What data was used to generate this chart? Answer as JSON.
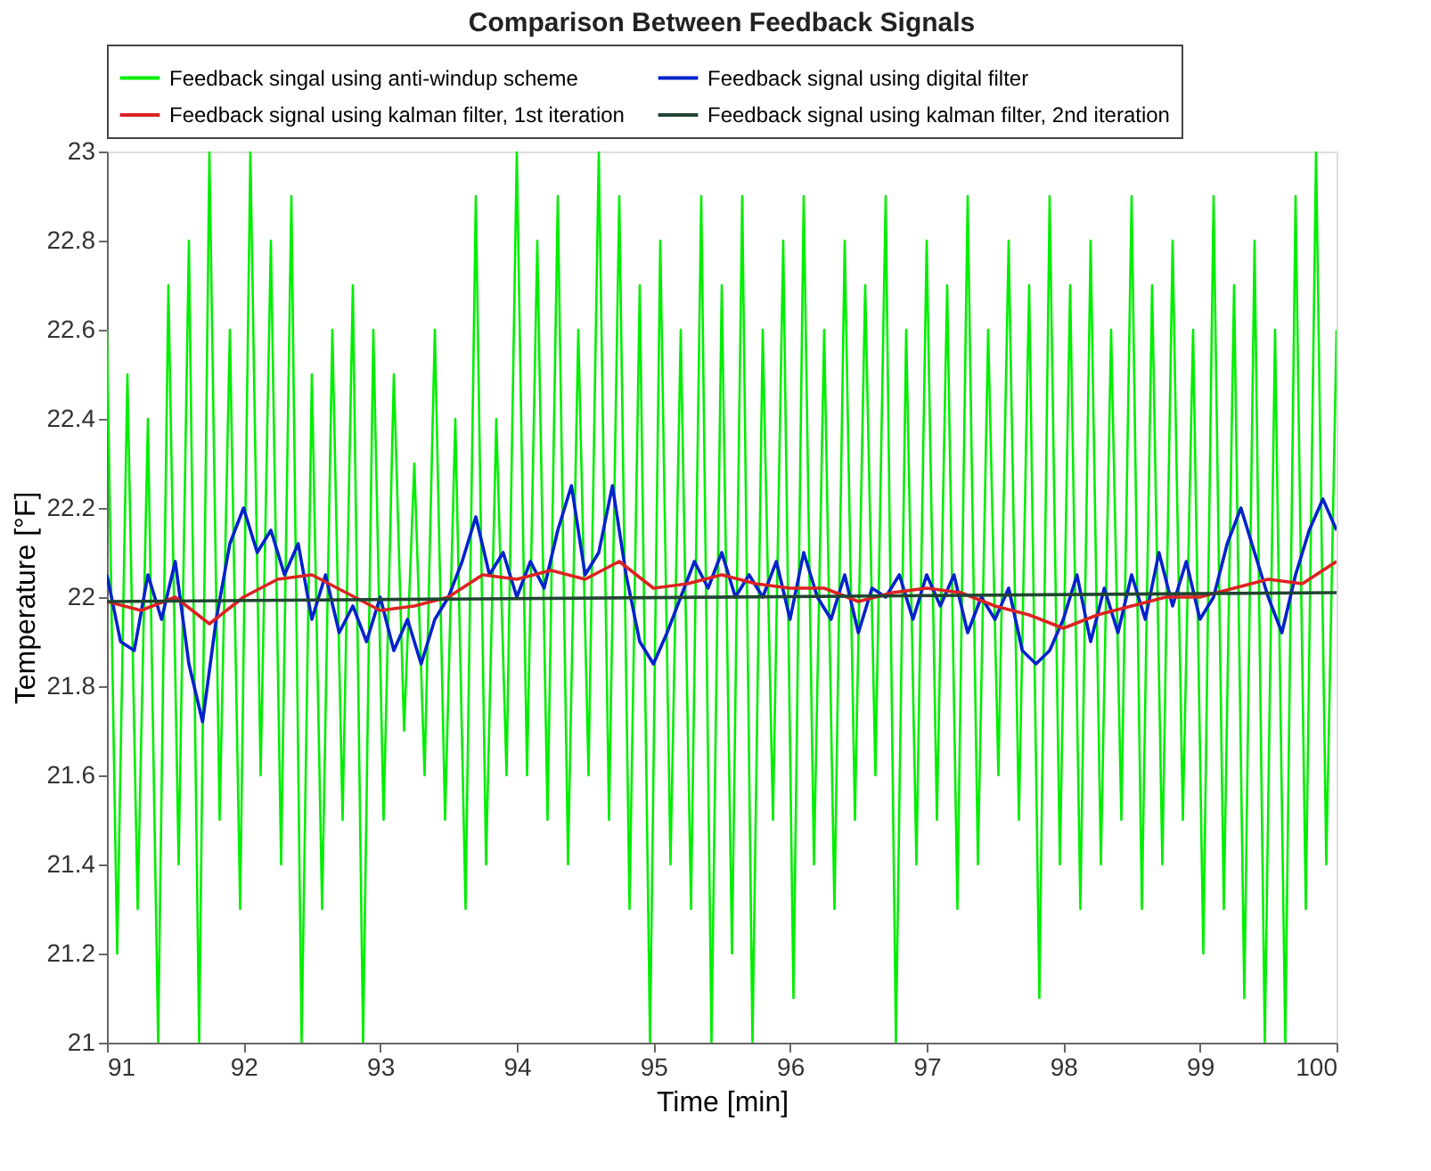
{
  "chart_data": {
    "type": "line",
    "title": "Comparison  Between Feedback Signals",
    "xlabel": "Time [min]",
    "ylabel": "Temperature [°F]",
    "xlim": [
      91,
      100
    ],
    "ylim": [
      21,
      23
    ],
    "xticks": [
      91,
      92,
      93,
      94,
      95,
      96,
      97,
      98,
      99,
      100
    ],
    "yticks": [
      21,
      21.2,
      21.4,
      21.6,
      21.8,
      22,
      22.2,
      22.4,
      22.6,
      22.8,
      23
    ],
    "grid": false,
    "legend": "top",
    "line_style": "solid",
    "marker": "none",
    "series": [
      {
        "name": "Feedback singal using anti-windup scheme",
        "color": "#00ee00",
        "x": [
          91.0,
          91.075,
          91.15,
          91.225,
          91.3,
          91.375,
          91.45,
          91.525,
          91.6,
          91.675,
          91.75,
          91.825,
          91.9,
          91.975,
          92.05,
          92.125,
          92.2,
          92.275,
          92.35,
          92.425,
          92.5,
          92.575,
          92.65,
          92.725,
          92.8,
          92.875,
          92.95,
          93.025,
          93.1,
          93.175,
          93.25,
          93.325,
          93.4,
          93.475,
          93.55,
          93.625,
          93.7,
          93.775,
          93.85,
          93.925,
          94.0,
          94.075,
          94.15,
          94.225,
          94.3,
          94.375,
          94.45,
          94.525,
          94.6,
          94.675,
          94.75,
          94.825,
          94.9,
          94.975,
          95.05,
          95.125,
          95.2,
          95.275,
          95.35,
          95.425,
          95.5,
          95.575,
          95.65,
          95.725,
          95.8,
          95.875,
          95.95,
          96.025,
          96.1,
          96.175,
          96.25,
          96.325,
          96.4,
          96.475,
          96.55,
          96.625,
          96.7,
          96.775,
          96.85,
          96.925,
          97.0,
          97.075,
          97.15,
          97.225,
          97.3,
          97.375,
          97.45,
          97.525,
          97.6,
          97.675,
          97.75,
          97.825,
          97.9,
          97.975,
          98.05,
          98.125,
          98.2,
          98.275,
          98.35,
          98.425,
          98.5,
          98.575,
          98.65,
          98.725,
          98.8,
          98.875,
          98.95,
          99.025,
          99.1,
          99.175,
          99.25,
          99.325,
          99.4,
          99.475,
          99.55,
          99.625,
          99.7,
          99.775,
          99.85,
          99.925,
          100.0
        ],
        "values": [
          22.6,
          21.2,
          22.5,
          21.3,
          22.4,
          21.0,
          22.7,
          21.4,
          22.8,
          21.0,
          23.0,
          21.5,
          22.6,
          21.3,
          23.0,
          21.6,
          22.8,
          21.4,
          22.9,
          21.0,
          22.5,
          21.3,
          22.6,
          21.5,
          22.7,
          21.0,
          22.6,
          21.5,
          22.5,
          21.7,
          22.3,
          21.6,
          22.6,
          21.5,
          22.4,
          21.3,
          22.9,
          21.4,
          22.4,
          21.6,
          23.0,
          21.6,
          22.8,
          21.5,
          22.9,
          21.4,
          22.6,
          21.6,
          23.0,
          21.5,
          22.9,
          21.3,
          22.7,
          21.0,
          22.8,
          21.4,
          22.6,
          21.3,
          22.9,
          21.0,
          22.7,
          21.2,
          22.9,
          21.0,
          22.6,
          21.5,
          22.8,
          21.1,
          22.9,
          21.4,
          22.6,
          21.3,
          22.8,
          21.5,
          22.7,
          21.6,
          22.9,
          21.0,
          22.6,
          21.4,
          22.8,
          21.5,
          22.7,
          21.3,
          22.9,
          21.4,
          22.6,
          21.6,
          22.8,
          21.5,
          22.7,
          21.1,
          22.9,
          21.4,
          22.7,
          21.3,
          22.8,
          21.4,
          22.6,
          21.5,
          22.9,
          21.3,
          22.7,
          21.4,
          22.8,
          21.5,
          22.6,
          21.2,
          22.9,
          21.3,
          22.7,
          21.1,
          22.8,
          21.0,
          22.6,
          21.0,
          22.9,
          21.3,
          23.0,
          21.4,
          22.6
        ]
      },
      {
        "name": "Feedback signal using digital filter",
        "color": "#0022cc",
        "x": [
          91.0,
          91.1,
          91.2,
          91.3,
          91.4,
          91.5,
          91.6,
          91.7,
          91.8,
          91.9,
          92.0,
          92.1,
          92.2,
          92.3,
          92.4,
          92.5,
          92.6,
          92.7,
          92.8,
          92.9,
          93.0,
          93.1,
          93.2,
          93.3,
          93.4,
          93.5,
          93.6,
          93.7,
          93.8,
          93.9,
          94.0,
          94.1,
          94.2,
          94.3,
          94.4,
          94.5,
          94.6,
          94.7,
          94.8,
          94.9,
          95.0,
          95.1,
          95.2,
          95.3,
          95.4,
          95.5,
          95.6,
          95.7,
          95.8,
          95.9,
          96.0,
          96.1,
          96.2,
          96.3,
          96.4,
          96.5,
          96.6,
          96.7,
          96.8,
          96.9,
          97.0,
          97.1,
          97.2,
          97.3,
          97.4,
          97.5,
          97.6,
          97.7,
          97.8,
          97.9,
          98.0,
          98.1,
          98.2,
          98.3,
          98.4,
          98.5,
          98.6,
          98.7,
          98.8,
          98.9,
          99.0,
          99.1,
          99.2,
          99.3,
          99.4,
          99.5,
          99.6,
          99.7,
          99.8,
          99.9,
          100.0
        ],
        "values": [
          22.05,
          21.9,
          21.88,
          22.05,
          21.95,
          22.08,
          21.85,
          21.72,
          21.95,
          22.12,
          22.2,
          22.1,
          22.15,
          22.05,
          22.12,
          21.95,
          22.05,
          21.92,
          21.98,
          21.9,
          22.0,
          21.88,
          21.95,
          21.85,
          21.95,
          22.0,
          22.08,
          22.18,
          22.05,
          22.1,
          22.0,
          22.08,
          22.02,
          22.15,
          22.25,
          22.05,
          22.1,
          22.25,
          22.05,
          21.9,
          21.85,
          21.92,
          22.0,
          22.08,
          22.02,
          22.1,
          22.0,
          22.05,
          22.0,
          22.08,
          21.95,
          22.1,
          22.0,
          21.95,
          22.05,
          21.92,
          22.02,
          22.0,
          22.05,
          21.95,
          22.05,
          21.98,
          22.05,
          21.92,
          22.0,
          21.95,
          22.02,
          21.88,
          21.85,
          21.88,
          21.95,
          22.05,
          21.9,
          22.02,
          21.92,
          22.05,
          21.95,
          22.1,
          21.98,
          22.08,
          21.95,
          22.0,
          22.12,
          22.2,
          22.1,
          22.0,
          21.92,
          22.05,
          22.15,
          22.22,
          22.15
        ]
      },
      {
        "name": "Feedback signal using kalman filter, 1st iteration",
        "color": "#dd2222",
        "x": [
          91.0,
          91.25,
          91.5,
          91.75,
          92.0,
          92.25,
          92.5,
          92.75,
          93.0,
          93.25,
          93.5,
          93.75,
          94.0,
          94.25,
          94.5,
          94.75,
          95.0,
          95.25,
          95.5,
          95.75,
          96.0,
          96.25,
          96.5,
          96.75,
          97.0,
          97.25,
          97.5,
          97.75,
          98.0,
          98.25,
          98.5,
          98.75,
          99.0,
          99.25,
          99.5,
          99.75,
          100.0
        ],
        "values": [
          21.99,
          21.97,
          22.0,
          21.94,
          22.0,
          22.04,
          22.05,
          22.01,
          21.97,
          21.98,
          22.0,
          22.05,
          22.04,
          22.06,
          22.04,
          22.08,
          22.02,
          22.03,
          22.05,
          22.03,
          22.02,
          22.02,
          21.99,
          22.01,
          22.02,
          22.01,
          21.98,
          21.96,
          21.93,
          21.96,
          21.98,
          22.0,
          22.0,
          22.02,
          22.04,
          22.03,
          22.08
        ]
      },
      {
        "name": "Feedback signal using kalman filter, 2nd iteration",
        "color": "#224433",
        "x": [
          91.0,
          100.0
        ],
        "values": [
          21.99,
          22.01
        ]
      }
    ]
  }
}
